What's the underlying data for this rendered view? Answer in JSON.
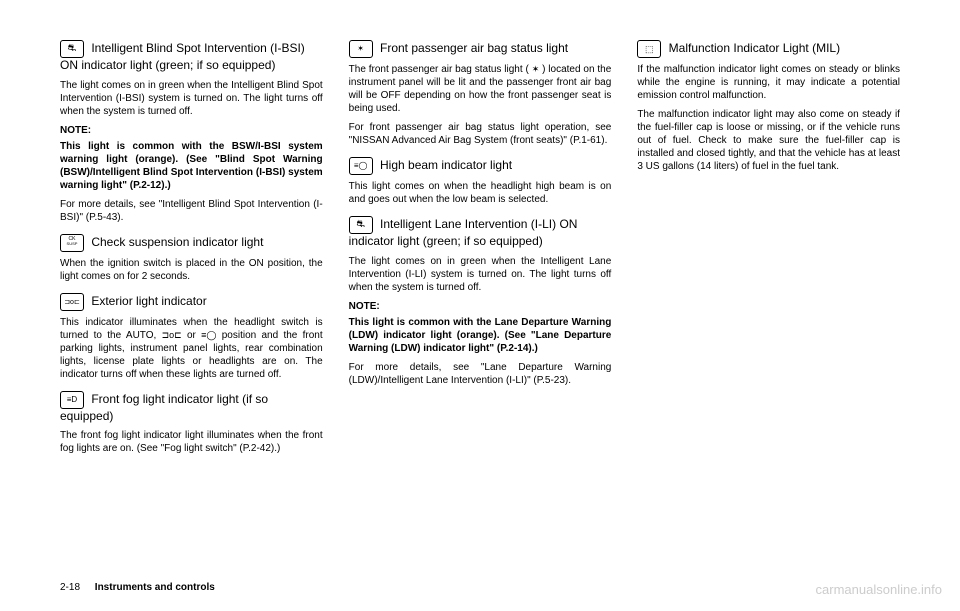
{
  "footer": {
    "page": "2-18",
    "chapter": "Instruments and controls"
  },
  "watermark": "carmanualsonline.info",
  "sections": {
    "ibsi": {
      "title": "Intelligent Blind Spot Intervention (I-BSI) ON indicator light (green; if so equipped)",
      "p1": "The light comes on in green when the Intelligent Blind Spot Intervention (I-BSI) system is turned on. The light turns off when the system is turned off.",
      "note": "NOTE:",
      "p2": "This light is common with the BSW/I-BSI system warning light (orange). (See \"Blind Spot Warning (BSW)/Intelligent Blind Spot Intervention (I-BSI) system warning light\" (P.2-12).)",
      "p3": "For more details, see \"Intelligent Blind Spot Intervention (I-BSI)\" (P.5-43)."
    },
    "susp": {
      "title": "Check suspension indicator light",
      "p1": "When the ignition switch is placed in the ON position, the light comes on for 2 seconds."
    },
    "ext": {
      "title": "Exterior light indicator",
      "p1_a": "This indicator illuminates when the headlight switch is turned to the AUTO, ",
      "p1_b": " or ",
      "p1_c": " position and the front parking lights, instrument panel lights, rear combination lights, license plate lights or headlights are on. The indicator turns off when these lights are turned off."
    },
    "fog": {
      "title": "Front fog light indicator light (if so equipped)",
      "p1": "The front fog light indicator light illuminates when the front fog lights are on. (See \"Fog light switch\" (P.2-42).)"
    },
    "airbag": {
      "title": "Front passenger air bag status light",
      "p1_a": "The front passenger air bag status light ( ",
      "p1_b": " ) located on the instrument panel will be lit and the passenger front air bag will be OFF depending on how the front passenger seat is being used.",
      "p2": "For front passenger air bag status light operation, see \"NISSAN Advanced Air Bag System (front seats)\" (P.1-61)."
    },
    "highbeam": {
      "title": "High beam indicator light",
      "p1": "This light comes on when the headlight high beam is on and goes out when the low beam is selected."
    },
    "ili": {
      "title": "Intelligent Lane Intervention (I-LI) ON indicator light (green; if so equipped)",
      "p1": "The light comes on in green when the Intelligent Lane Intervention (I-LI) system is turned on. The light turns off when the system is turned off.",
      "note": "NOTE:",
      "p2": "This light is common with the Lane Departure Warning (LDW) indicator light (orange). (See \"Lane Departure Warning (LDW) indicator light\" (P.2-14).)",
      "p3": "For more details, see \"Lane Departure Warning (LDW)/Intelligent Lane Intervention (I-LI)\" (P.5-23)."
    },
    "mil": {
      "title": "Malfunction Indicator Light (MIL)",
      "p1": "If the malfunction indicator light comes on steady or blinks while the engine is running, it may indicate a potential emission control malfunction.",
      "p2": "The malfunction indicator light may also come on steady if the fuel-filler cap is loose or missing, or if the vehicle runs out of fuel. Check to make sure the fuel-filler cap is installed and closed tightly, and that the vehicle has at least 3 US gallons (14 liters) of fuel in the fuel tank."
    }
  }
}
